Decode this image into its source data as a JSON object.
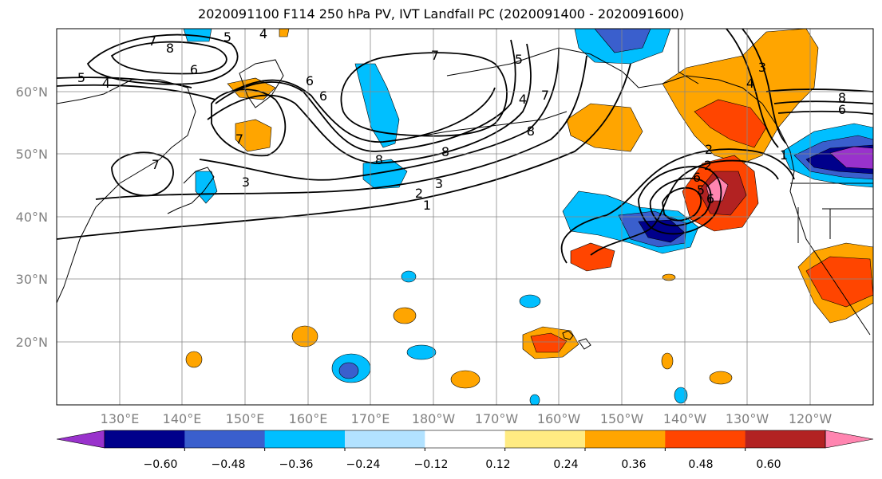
{
  "title": "2020091100 F114 250 hPa PV, IVT Landfall PC (2020091400 - 2020091600)",
  "map": {
    "lat_labels": [
      "60°N",
      "50°N",
      "40°N",
      "30°N",
      "20°N"
    ],
    "lon_labels": [
      "130°E",
      "140°E",
      "150°E",
      "160°E",
      "170°E",
      "180°W",
      "170°W",
      "160°W",
      "150°W",
      "140°W",
      "130°W",
      "120°W"
    ],
    "contour_labels": [
      "7",
      "8",
      "6",
      "5",
      "4",
      "4",
      "5",
      "6",
      "7",
      "8",
      "7",
      "6",
      "5",
      "4",
      "3",
      "2",
      "1",
      "7",
      "8",
      "2",
      "3",
      "8",
      "6",
      "2",
      "1",
      "6",
      "5",
      "4",
      "3",
      "7",
      "8",
      "6"
    ]
  },
  "colorbar": {
    "ticks": [
      "−0.60",
      "−0.48",
      "−0.36",
      "−0.24",
      "−0.12",
      "0.12",
      "0.24",
      "0.36",
      "0.48",
      "0.60"
    ],
    "colors": [
      "#9932CC",
      "#00008B",
      "#3A5FCD",
      "#00BFFF",
      "#B2E2FF",
      "#FFFFFF",
      "#FFEB82",
      "#FFA500",
      "#FF4500",
      "#B22222",
      "#FF85B0"
    ]
  }
}
